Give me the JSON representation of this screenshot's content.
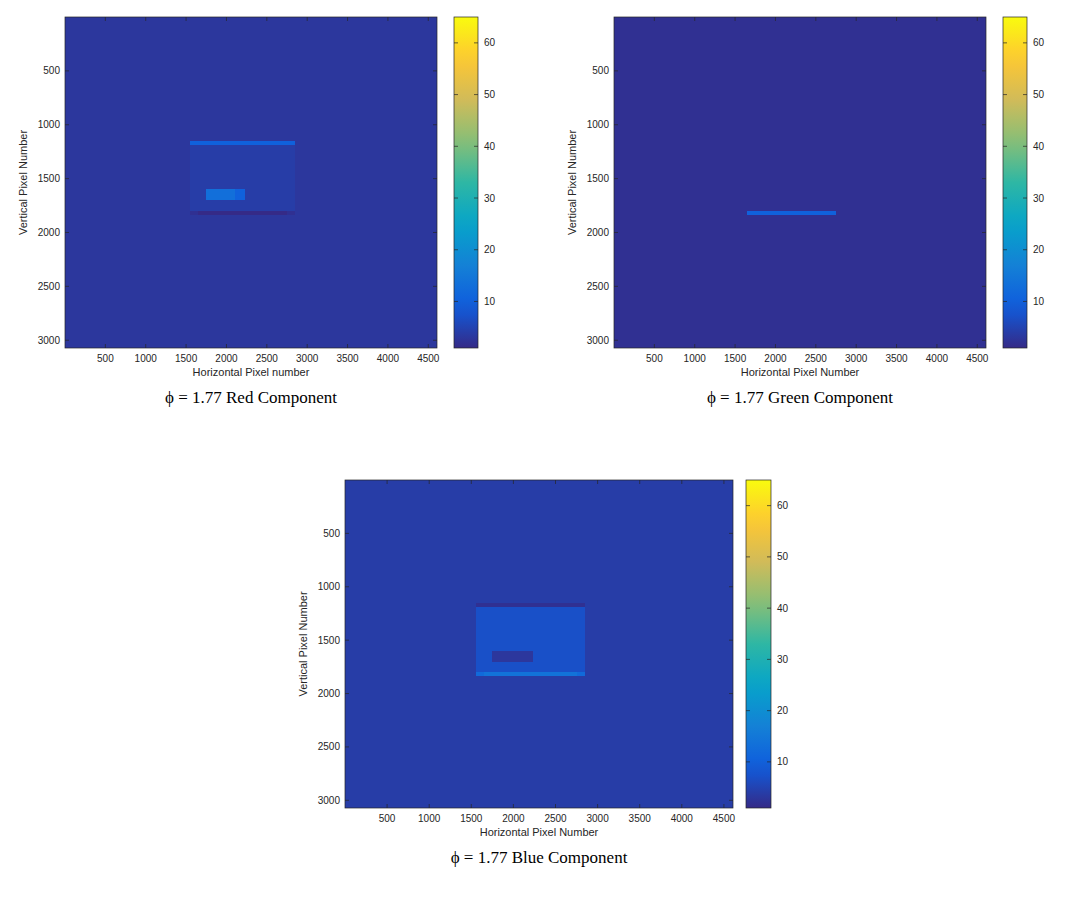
{
  "chart_data": [
    {
      "type": "heatmap",
      "title": "ϕ = 1.77 Red Component",
      "x_label": "Horizontal Pixel number",
      "y_label": "Vertical Pixel Number",
      "xlim": [
        0,
        4608
      ],
      "ylim": [
        3072,
        0
      ],
      "xticks": [
        500,
        1000,
        1500,
        2000,
        2500,
        3000,
        3500,
        4000,
        4500
      ],
      "yticks": [
        500,
        1000,
        1500,
        2000,
        2500,
        3000
      ],
      "x_edges": [
        0,
        1550,
        1650,
        1750,
        2100,
        2230,
        2750,
        2850,
        4608
      ],
      "y_edges": [
        0,
        1150,
        1185,
        1600,
        1700,
        1800,
        1840,
        3072
      ],
      "cells": [
        [
          3,
          3,
          3,
          3,
          3,
          3,
          3,
          3
        ],
        [
          3,
          10,
          10,
          10,
          10,
          10,
          10,
          3
        ],
        [
          3,
          4,
          4,
          4,
          4,
          4,
          4,
          3
        ],
        [
          3,
          4,
          4,
          13,
          10,
          4,
          4,
          3
        ],
        [
          3,
          4,
          4,
          4,
          4,
          4,
          4,
          3
        ],
        [
          3,
          2,
          1,
          1,
          1,
          1,
          2,
          3
        ],
        [
          3,
          3,
          3,
          3,
          3,
          3,
          3,
          3
        ]
      ],
      "colorbar_range": [
        1,
        65
      ],
      "colorbar_ticks": [
        10,
        20,
        30,
        40,
        50,
        60
      ]
    },
    {
      "type": "heatmap",
      "title": "ϕ = 1.77 Green Component",
      "x_label": "Horizontal Pixel Number",
      "y_label": "Vertical Pixel Number",
      "xlim": [
        0,
        4608
      ],
      "ylim": [
        3072,
        0
      ],
      "xticks": [
        500,
        1000,
        1500,
        2000,
        2500,
        3000,
        3500,
        4000,
        4500
      ],
      "yticks": [
        500,
        1000,
        1500,
        2000,
        2500,
        3000
      ],
      "x_edges": [
        0,
        1550,
        1650,
        1750,
        2100,
        2230,
        2750,
        2850,
        4608
      ],
      "y_edges": [
        0,
        1150,
        1185,
        1600,
        1700,
        1800,
        1840,
        3072
      ],
      "cells": [
        [
          2,
          2,
          2,
          2,
          2,
          2,
          2,
          2
        ],
        [
          2,
          2,
          2,
          2,
          2,
          2,
          2,
          2
        ],
        [
          2,
          2,
          2,
          2,
          2,
          2,
          2,
          2
        ],
        [
          2,
          2,
          2,
          2,
          2,
          2,
          2,
          2
        ],
        [
          2,
          2,
          2,
          2,
          2,
          2,
          2,
          2
        ],
        [
          2,
          2,
          10,
          10,
          10,
          10,
          2,
          2
        ],
        [
          2,
          2,
          2,
          2,
          2,
          2,
          2,
          2
        ]
      ],
      "colorbar_range": [
        1,
        65
      ],
      "colorbar_ticks": [
        10,
        20,
        30,
        40,
        50,
        60
      ]
    },
    {
      "type": "heatmap",
      "title": "ϕ = 1.77 Blue Component",
      "x_label": "Horizontal Pixel Number",
      "y_label": "Vertical Pixel Number",
      "xlim": [
        0,
        4608
      ],
      "ylim": [
        3072,
        0
      ],
      "xticks": [
        500,
        1000,
        1500,
        2000,
        2500,
        3000,
        3500,
        4000,
        4500
      ],
      "yticks": [
        500,
        1000,
        1500,
        2000,
        2500,
        3000
      ],
      "x_edges": [
        0,
        1550,
        1650,
        1750,
        2100,
        2230,
        2750,
        2850,
        4608
      ],
      "y_edges": [
        0,
        1150,
        1185,
        1600,
        1700,
        1800,
        1840,
        3072
      ],
      "cells": [
        [
          4,
          4,
          4,
          4,
          4,
          4,
          4,
          4
        ],
        [
          4,
          2,
          2,
          2,
          2,
          2,
          2,
          4
        ],
        [
          4,
          7,
          7,
          7,
          7,
          7,
          7,
          4
        ],
        [
          4,
          7,
          7,
          3,
          3,
          7,
          7,
          4
        ],
        [
          4,
          7,
          7,
          7,
          7,
          7,
          7,
          4
        ],
        [
          4,
          12,
          14,
          14,
          14,
          14,
          12,
          4
        ],
        [
          4,
          4,
          4,
          4,
          4,
          4,
          4,
          4
        ]
      ],
      "colorbar_range": [
        1,
        65
      ],
      "colorbar_ticks": [
        10,
        20,
        30,
        40,
        50,
        60
      ]
    }
  ]
}
